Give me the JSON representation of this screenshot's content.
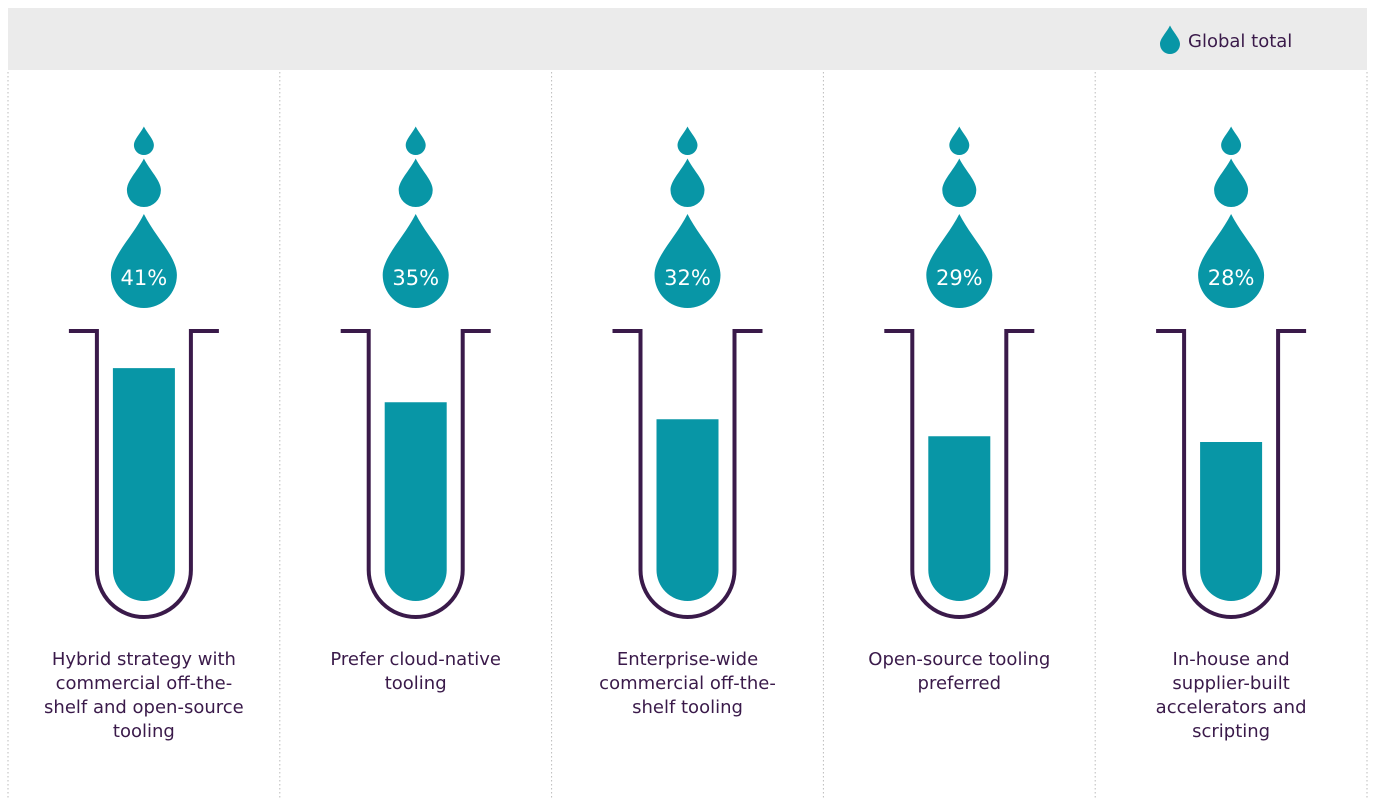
{
  "chart_data": {
    "type": "bar",
    "categories": [
      "Hybrid strategy with commercial off-the-shelf and open-source tooling",
      "Prefer cloud-native tooling",
      "Enterprise-wide commercial off-the-shelf tooling",
      "Open-source tooling preferred",
      "In-house and supplier-built accelerators and scripting"
    ],
    "series": [
      {
        "name": "Global total",
        "color": "#0896a6",
        "values": [
          41,
          35,
          32,
          29,
          28
        ],
        "value_labels": [
          "41%",
          "35%",
          "32%",
          "29%",
          "28%"
        ]
      }
    ]
  }
}
